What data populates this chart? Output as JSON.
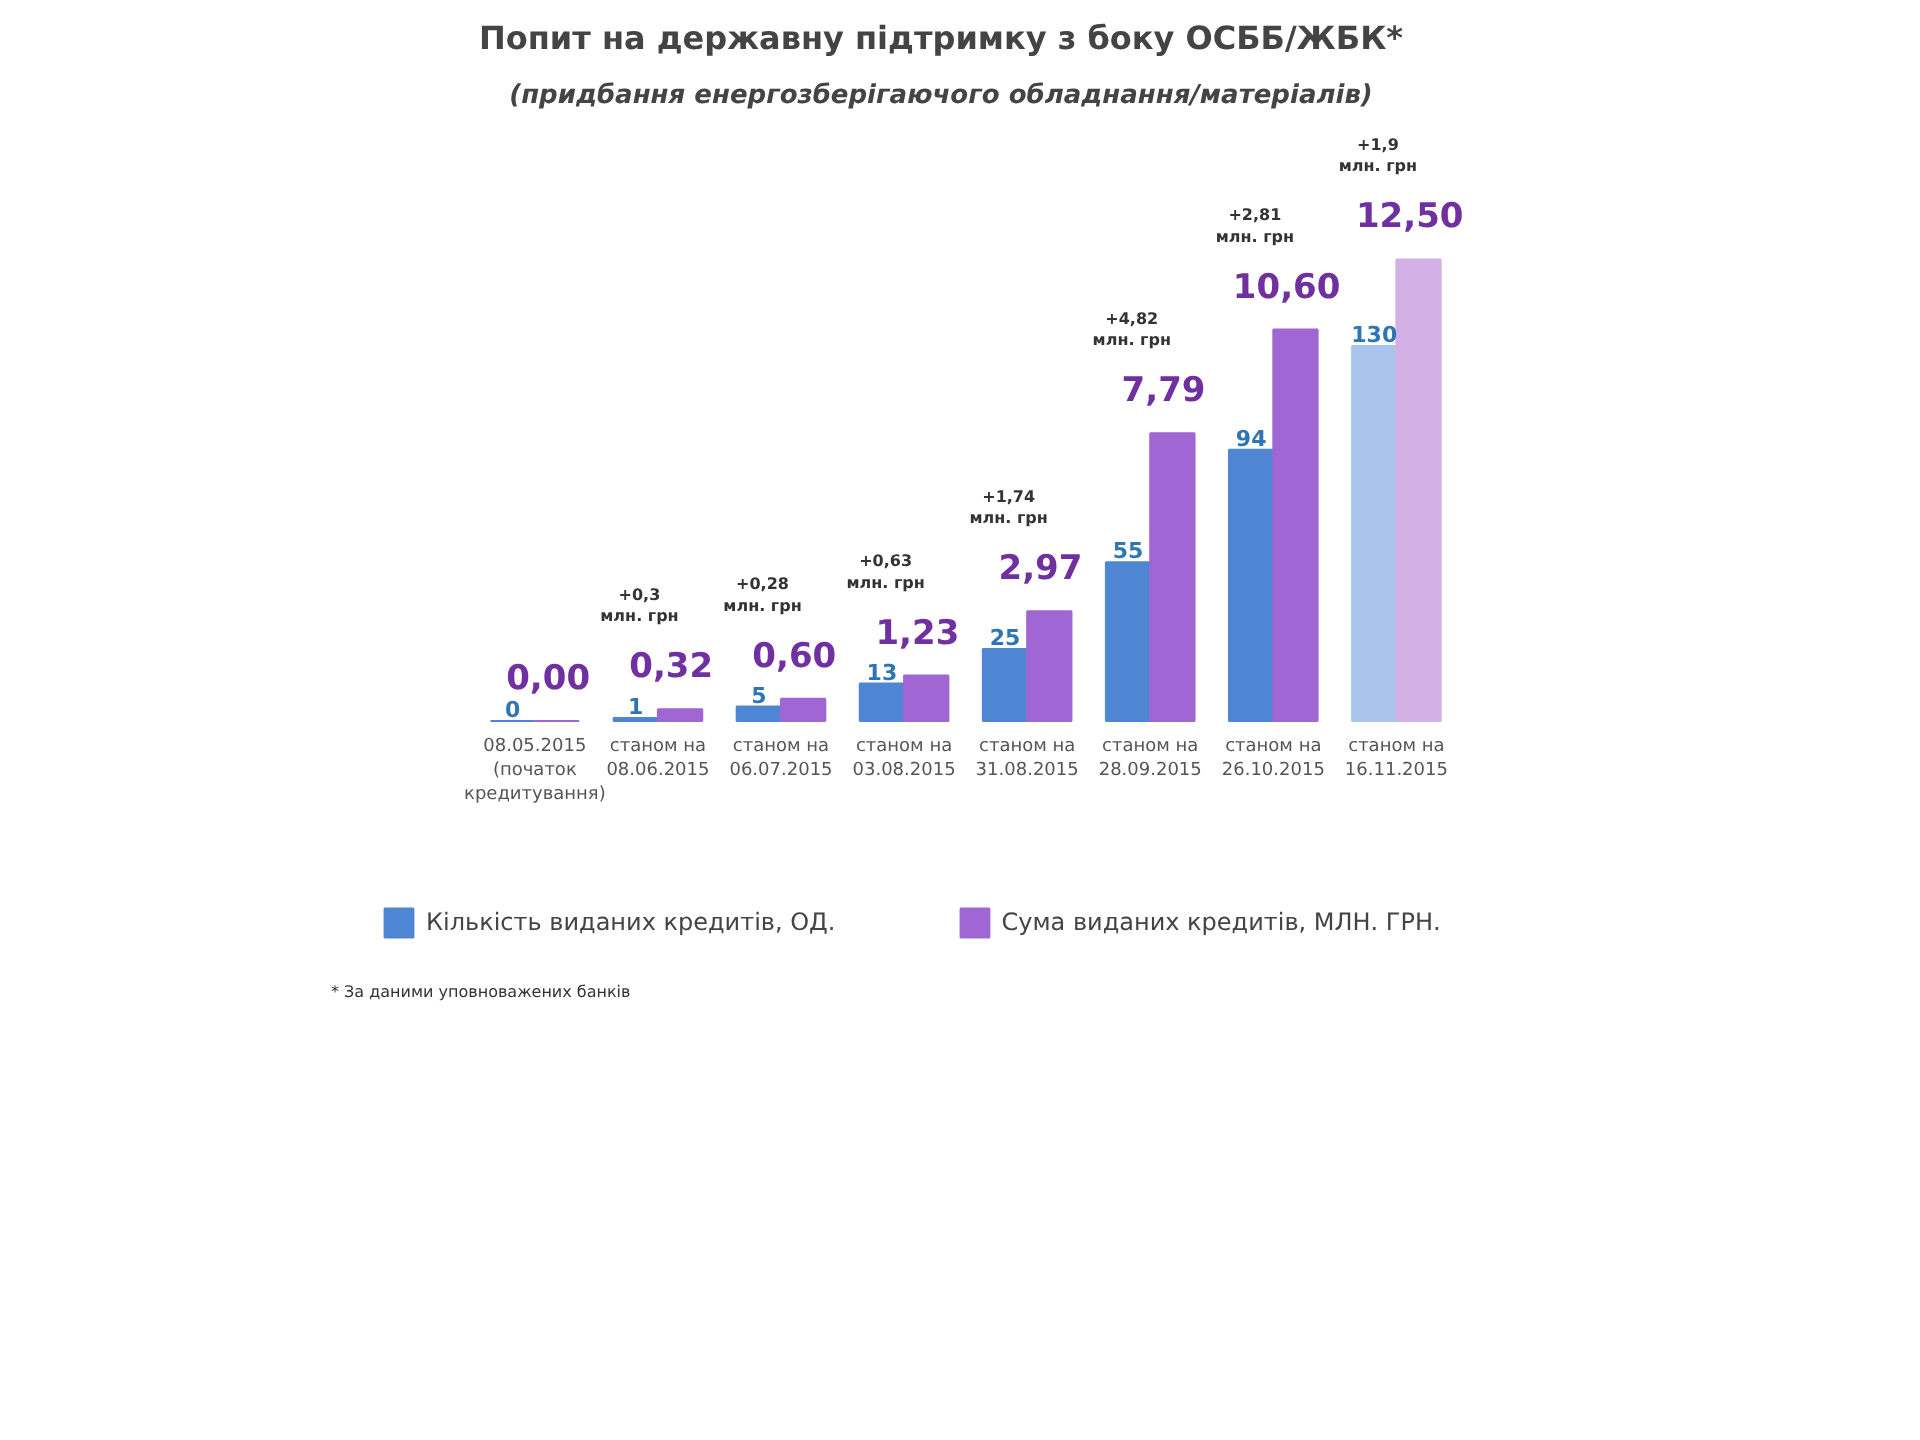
{
  "chart_data": {
    "type": "bar",
    "title": "Попит на державну підтримку з боку ОСББ/ЖБК*",
    "subtitle": "(придбання енергозберігаючого обладнання/матеріалів)",
    "categories": [
      "08.05.2015\n(початок\nкредитування)",
      "станом на\n08.06.2015",
      "станом на\n06.07.2015",
      "станом на\n03.08.2015",
      "станом на\n31.08.2015",
      "станом на\n28.09.2015",
      "станом на\n26.10.2015",
      "станом на\n16.11.2015"
    ],
    "series": [
      {
        "name": "Кількість виданих кредитів, ОД.",
        "colors": [
          "#4f86d4",
          "#4f86d4",
          "#4f86d4",
          "#4f86d4",
          "#4f86d4",
          "#4f86d4",
          "#4f86d4",
          "#a9c4ea"
        ],
        "values": [
          0,
          1,
          5,
          13,
          25,
          55,
          94,
          130
        ],
        "value_labels": [
          "0",
          "1",
          "5",
          "13",
          "25",
          "55",
          "94",
          "130"
        ]
      },
      {
        "name": "Сума виданих кредитів, МЛН. ГРН.",
        "axis": "y2",
        "colors": [
          "#a066d3",
          "#a066d3",
          "#a066d3",
          "#a066d3",
          "#a066d3",
          "#a066d3",
          "#a066d3",
          "#d3b0e6"
        ],
        "values": [
          0,
          0.32,
          0.6,
          1.23,
          2.97,
          7.79,
          10.6,
          12.5
        ],
        "value_labels": [
          "0,00",
          "0,32",
          "0,60",
          "1,23",
          "2,97",
          "7,79",
          "10,60",
          "12,50"
        ]
      }
    ],
    "annotations": [
      "+0,3\nмлн. грн",
      "+0,28\nмлн. грн",
      "+0,63\nмлн. грн",
      "+1,74\nмлн. грн",
      "+4,82\nмлн. грн",
      "+2,81\nмлн. грн",
      "+1,9\nмлн. грн",
      "* За даними уповноважених банків"
    ],
    "tick_labels": "x",
    "grid": false,
    "legend": "bottom"
  }
}
